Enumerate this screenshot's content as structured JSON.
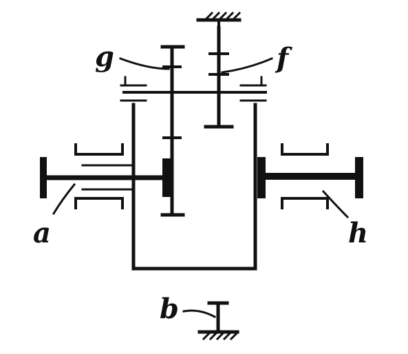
{
  "diagram": {
    "type": "planetary-gear-schematic",
    "labels": {
      "a": "a",
      "b": "b",
      "f": "f",
      "g": "g",
      "h": "h"
    },
    "components": [
      {
        "id": "a",
        "kind": "input-shaft"
      },
      {
        "id": "h",
        "kind": "output-shaft"
      },
      {
        "id": "b",
        "kind": "carrier-brake-to-ground"
      },
      {
        "id": "f",
        "kind": "fixed-gear-to-ground"
      },
      {
        "id": "g",
        "kind": "planet-gear"
      }
    ],
    "ink_color": "#111111",
    "background_color": "#ffffff"
  }
}
